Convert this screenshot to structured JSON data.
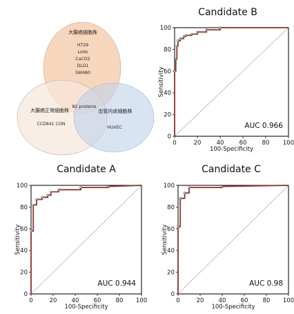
{
  "venn": {
    "circles": [
      {
        "id": "cancer",
        "label": "大腸癌細胞株",
        "items": [
          "HT29",
          "LoVo",
          "CaCO2",
          "DLD1",
          "SW480"
        ],
        "fill": "#f4c8a8"
      },
      {
        "id": "normal",
        "label": "大腸癌正常細胞株",
        "items": [
          "CCD841 CON"
        ],
        "fill": "#f7e7dc"
      },
      {
        "id": "huvec",
        "label": "血管内皮細胞株",
        "items": [
          "HUVEC"
        ],
        "fill": "#bfd2ea"
      }
    ],
    "center_label": "82 proteins"
  },
  "chart_data": [
    {
      "type": "line",
      "title": "Candidate  B",
      "xlabel": "100-Specificity",
      "ylabel": "Sensitivity",
      "xlim": [
        0,
        100
      ],
      "ylim": [
        0,
        100
      ],
      "xticks": [
        "0",
        "20",
        "40",
        "60",
        "80",
        "100"
      ],
      "yticks": [
        "0",
        "20",
        "40",
        "60",
        "80",
        "100"
      ],
      "annotation": "AUC 0.966",
      "diagonal": true,
      "series": [
        {
          "x": [
            0,
            0,
            1,
            1,
            2,
            2,
            3,
            3,
            5,
            5,
            8,
            8,
            10,
            10,
            15,
            15,
            20,
            20,
            28,
            28,
            40,
            40,
            100
          ],
          "y": [
            0,
            60,
            60,
            71,
            71,
            83,
            83,
            88,
            88,
            90,
            90,
            92,
            92,
            93,
            93,
            94,
            94,
            96,
            96,
            98,
            98,
            100,
            100
          ]
        }
      ]
    },
    {
      "type": "line",
      "title": "Candidate  A",
      "xlabel": "100-Specificity",
      "ylabel": "Sensitivity",
      "xlim": [
        0,
        100
      ],
      "ylim": [
        0,
        100
      ],
      "xticks": [
        "0",
        "20",
        "40",
        "60",
        "80",
        "100"
      ],
      "yticks": [
        "0",
        "20",
        "40",
        "60",
        "80",
        "100"
      ],
      "annotation": "AUC 0.944",
      "diagonal": true,
      "series": [
        {
          "x": [
            0,
            0,
            2,
            2,
            5,
            5,
            10,
            10,
            15,
            15,
            18,
            18,
            25,
            25,
            45,
            45,
            70,
            70,
            100
          ],
          "y": [
            0,
            58,
            58,
            82,
            82,
            87,
            87,
            89,
            89,
            91,
            91,
            94,
            94,
            96,
            96,
            98,
            98,
            99,
            100
          ]
        }
      ]
    },
    {
      "type": "line",
      "title": "Candidate  C",
      "xlabel": "100-Specificity",
      "ylabel": "Sensitivity",
      "xlim": [
        0,
        100
      ],
      "ylim": [
        0,
        100
      ],
      "xticks": [
        "0",
        "20",
        "40",
        "60",
        "80",
        "100"
      ],
      "yticks": [
        "0",
        "20",
        "40",
        "60",
        "80",
        "100"
      ],
      "annotation": "AUC 0.98",
      "diagonal": true,
      "series": [
        {
          "x": [
            0,
            0,
            2,
            2,
            6,
            6,
            10,
            10,
            40,
            40,
            100
          ],
          "y": [
            0,
            62,
            62,
            88,
            88,
            93,
            93,
            98,
            98,
            99,
            100
          ]
        }
      ]
    }
  ],
  "colors": {
    "roc_line": "#c0392b",
    "roc_step": "#333333",
    "diagonal": "#a9b4c2",
    "axis": "#111111"
  }
}
